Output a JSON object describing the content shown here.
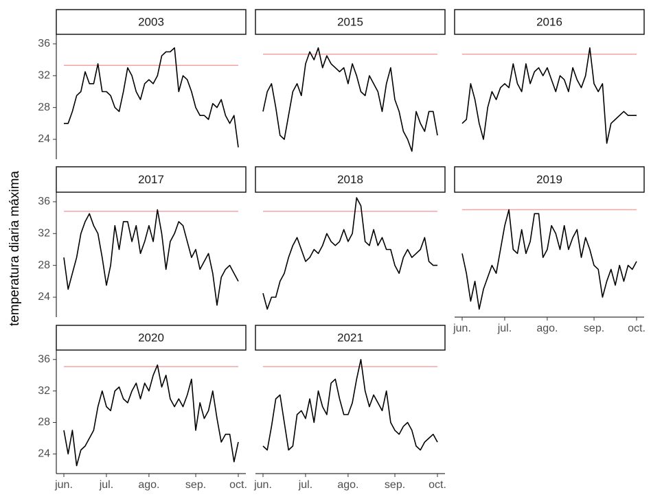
{
  "y_label": "temperatura diaria máxima",
  "categories": [
    "jun.",
    null,
    null,
    null,
    null,
    null,
    null,
    null,
    null,
    null,
    "jul.",
    null,
    null,
    null,
    null,
    null,
    null,
    null,
    null,
    null,
    "ago.",
    null,
    null,
    null,
    null,
    null,
    null,
    null,
    null,
    null,
    null,
    "sep.",
    null,
    null,
    null,
    null,
    null,
    null,
    null,
    null,
    null,
    "oct."
  ],
  "ylim": [
    21.5,
    37.2
  ],
  "yticks": [
    24,
    28,
    32,
    36
  ],
  "chart_data": [
    {
      "type": "line",
      "title": "2003",
      "color": "#000000",
      "reference": 33.3,
      "reference_color": "#f4a3a3",
      "values": [
        26,
        26,
        27.5,
        29.5,
        30,
        32.5,
        31,
        31,
        33.5,
        30,
        30,
        29.5,
        28,
        27.5,
        30,
        33,
        32,
        30,
        29,
        31,
        31.5,
        31,
        32,
        34.5,
        35,
        35,
        35.5,
        30,
        32,
        31.5,
        30,
        28,
        27,
        27,
        26.5,
        28.5,
        28,
        29,
        27,
        26,
        27,
        23
      ]
    },
    {
      "type": "line",
      "title": "2015",
      "color": "#000000",
      "reference": 34.7,
      "reference_color": "#f4a3a3",
      "values": [
        27.5,
        30,
        31,
        28,
        24.5,
        24,
        27,
        30,
        31,
        29.5,
        33.5,
        35,
        34,
        35.5,
        33,
        34.5,
        33.5,
        33,
        32.5,
        33,
        31,
        33.5,
        32,
        30,
        29.5,
        32,
        31,
        30,
        27.5,
        31,
        33,
        29,
        27.5,
        25,
        24,
        22.5,
        27.5,
        26,
        25,
        27.5,
        27.5,
        24.5
      ]
    },
    {
      "type": "line",
      "title": "2016",
      "color": "#000000",
      "reference": 34.7,
      "reference_color": "#f4a3a3",
      "values": [
        26,
        26.5,
        31,
        29,
        26,
        24,
        28,
        30,
        29,
        30.5,
        31,
        30.5,
        33.5,
        31,
        30,
        33.5,
        31,
        32.5,
        33,
        32,
        33,
        31.5,
        30,
        32,
        31.5,
        30,
        33,
        31.5,
        30.5,
        32,
        35.5,
        31,
        30,
        31,
        23.5,
        26,
        26.5,
        27,
        27.5,
        27,
        27,
        27
      ]
    },
    {
      "type": "line",
      "title": "2017",
      "color": "#000000",
      "reference": 34.8,
      "reference_color": "#f4a3a3",
      "values": [
        29,
        25,
        27,
        29,
        32,
        33.5,
        34.5,
        33,
        32,
        29,
        25.5,
        28,
        33,
        30,
        33.5,
        33.5,
        31,
        33,
        29.5,
        31,
        33,
        31,
        35,
        32,
        27.5,
        31,
        32,
        33.5,
        33,
        31,
        29,
        30,
        27.5,
        28.5,
        29.5,
        27,
        23,
        26.5,
        27.5,
        28,
        27,
        26
      ]
    },
    {
      "type": "line",
      "title": "2018",
      "color": "#000000",
      "reference": 34.8,
      "reference_color": "#f4a3a3",
      "values": [
        24.5,
        22.5,
        24,
        24,
        26,
        27,
        29,
        30.5,
        31.5,
        30,
        28.5,
        29,
        30,
        29.5,
        30.5,
        32,
        31,
        30.5,
        31,
        32.5,
        31,
        32,
        36.5,
        35.5,
        31,
        30.5,
        32.5,
        30.5,
        31.5,
        30,
        30,
        28,
        27,
        29,
        30,
        29,
        29.5,
        30,
        31.5,
        28.5,
        28,
        28
      ]
    },
    {
      "type": "line",
      "title": "2019",
      "color": "#000000",
      "reference": 35.0,
      "reference_color": "#f4a3a3",
      "values": [
        29.5,
        27,
        23.5,
        26,
        22.5,
        25,
        26.5,
        28,
        27,
        30,
        33,
        35,
        30,
        29.5,
        32.5,
        29.5,
        31,
        34.5,
        34.5,
        29,
        30,
        33,
        32,
        30,
        33,
        30,
        31.5,
        32.5,
        29,
        31.5,
        30,
        28,
        27.5,
        24,
        26,
        27.5,
        25.5,
        28,
        26,
        28,
        27.5,
        28.5
      ]
    },
    {
      "type": "line",
      "title": "2020",
      "color": "#000000",
      "reference": 35.1,
      "reference_color": "#f4a3a3",
      "values": [
        27,
        24,
        27,
        22.5,
        24.5,
        25,
        26,
        27,
        30,
        32,
        30,
        29.5,
        32,
        32.5,
        31,
        30.5,
        32,
        33,
        31,
        33,
        32,
        34,
        35.3,
        32.5,
        34,
        31,
        30,
        31,
        30,
        31.5,
        33.5,
        27,
        30.5,
        28.5,
        29.5,
        32,
        28.5,
        25.5,
        26.5,
        26.5,
        23,
        25.5
      ]
    },
    {
      "type": "line",
      "title": "2021",
      "color": "#000000",
      "reference": 35.1,
      "reference_color": "#f4a3a3",
      "values": [
        25,
        24.5,
        27.5,
        31,
        31.5,
        28,
        24.5,
        25,
        29,
        29.5,
        28.5,
        31,
        28,
        32,
        30,
        29,
        33,
        33.5,
        31,
        29,
        29,
        30.5,
        33.5,
        36,
        32,
        30,
        31.5,
        30.5,
        29.5,
        32,
        28,
        27,
        26.5,
        27.5,
        28,
        27,
        25,
        24.5,
        25.5,
        26,
        26.5,
        25.5
      ]
    }
  ]
}
